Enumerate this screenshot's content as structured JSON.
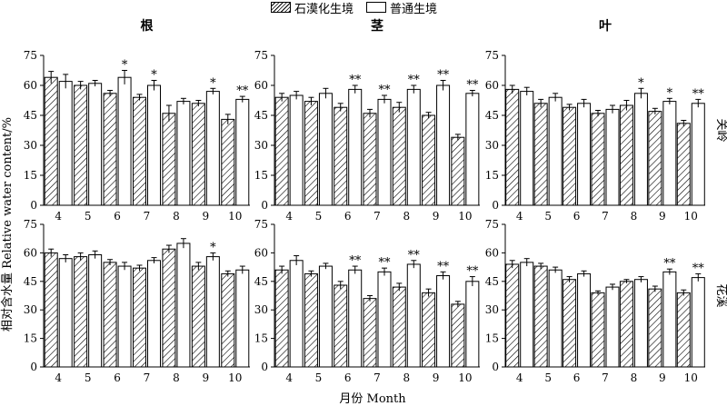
{
  "legend": {
    "series1": "石漠化生境",
    "series2": "普通生境"
  },
  "labels": {
    "ylabel": "相对含水量 Relative water content/%",
    "xlabel": "月份 Month"
  },
  "chart_data": [
    {
      "type": "bar",
      "row": "关岭",
      "organ": "根",
      "title": "根",
      "categories": [
        "4",
        "5",
        "6",
        "7",
        "8",
        "9",
        "10"
      ],
      "ylim": [
        0,
        75
      ],
      "yticks": [
        0,
        15,
        30,
        45,
        60,
        75
      ],
      "series": [
        {
          "name": "石漠化生境",
          "values": [
            64,
            60,
            56,
            54,
            46,
            51,
            43
          ],
          "errors": [
            3,
            2,
            1.5,
            1.5,
            4,
            1.5,
            2.5
          ]
        },
        {
          "name": "普通生境",
          "values": [
            62,
            61,
            64,
            60,
            52,
            57,
            53
          ],
          "errors": [
            3.5,
            1.5,
            3.5,
            2.5,
            1.5,
            1.5,
            1.5
          ]
        }
      ],
      "annotations": [
        "",
        "",
        "*",
        "*",
        "",
        "*",
        "**"
      ]
    },
    {
      "type": "bar",
      "row": "关岭",
      "organ": "茎",
      "title": "茎",
      "categories": [
        "4",
        "5",
        "6",
        "7",
        "8",
        "9",
        "10"
      ],
      "ylim": [
        0,
        75
      ],
      "yticks": [
        0,
        15,
        30,
        45,
        60,
        75
      ],
      "series": [
        {
          "name": "石漠化生境",
          "values": [
            54,
            52,
            49,
            46,
            49,
            45,
            34
          ],
          "errors": [
            2,
            2,
            2,
            2,
            2.5,
            1.5,
            1.5
          ]
        },
        {
          "name": "普通生境",
          "values": [
            55,
            56,
            58,
            53,
            58,
            60,
            56
          ],
          "errors": [
            2,
            2.5,
            2,
            2,
            2,
            2.5,
            1.5
          ]
        }
      ],
      "annotations": [
        "",
        "",
        "**",
        "**",
        "**",
        "**",
        "**"
      ]
    },
    {
      "type": "bar",
      "row": "关岭",
      "organ": "叶",
      "title": "叶",
      "categories": [
        "4",
        "5",
        "6",
        "7",
        "8",
        "9",
        "10"
      ],
      "ylim": [
        0,
        75
      ],
      "yticks": [
        0,
        15,
        30,
        45,
        60,
        75
      ],
      "series": [
        {
          "name": "石漠化生境",
          "values": [
            58,
            51,
            49,
            46,
            50,
            47,
            41
          ],
          "errors": [
            2,
            2,
            1.5,
            1.5,
            2.5,
            1.5,
            1.5
          ]
        },
        {
          "name": "普通生境",
          "values": [
            57,
            54,
            51,
            48,
            56,
            52,
            51
          ],
          "errors": [
            2,
            2,
            2,
            2,
            2.5,
            1.5,
            2
          ]
        }
      ],
      "annotations": [
        "",
        "",
        "",
        "",
        "*",
        "*",
        "**"
      ]
    },
    {
      "type": "bar",
      "row": "花溪",
      "organ": "根",
      "title": "",
      "categories": [
        "4",
        "5",
        "6",
        "7",
        "8",
        "9",
        "10"
      ],
      "ylim": [
        0,
        75
      ],
      "yticks": [
        0,
        15,
        30,
        45,
        60,
        75
      ],
      "series": [
        {
          "name": "石漠化生境",
          "values": [
            60,
            58,
            55,
            52,
            62,
            53,
            49
          ],
          "errors": [
            2,
            2,
            1.5,
            1.5,
            2,
            2,
            1.5
          ]
        },
        {
          "name": "普通生境",
          "values": [
            57,
            59,
            53,
            56,
            65,
            58,
            51
          ],
          "errors": [
            2,
            2,
            2,
            1.5,
            2.5,
            2,
            2
          ]
        }
      ],
      "annotations": [
        "",
        "",
        "",
        "",
        "",
        "*",
        ""
      ]
    },
    {
      "type": "bar",
      "row": "花溪",
      "organ": "茎",
      "title": "",
      "categories": [
        "4",
        "5",
        "6",
        "7",
        "8",
        "9",
        "10"
      ],
      "ylim": [
        0,
        75
      ],
      "yticks": [
        0,
        15,
        30,
        45,
        60,
        75
      ],
      "series": [
        {
          "name": "石漠化生境",
          "values": [
            51,
            49,
            43,
            36,
            42,
            39,
            33
          ],
          "errors": [
            2,
            1.5,
            2,
            1.5,
            2,
            2,
            1.5
          ]
        },
        {
          "name": "普通生境",
          "values": [
            56,
            53,
            51,
            50,
            54,
            48,
            45
          ],
          "errors": [
            2.5,
            1.5,
            2,
            2,
            2,
            2,
            2.5
          ]
        }
      ],
      "annotations": [
        "",
        "",
        "**",
        "**",
        "**",
        "**",
        "**"
      ]
    },
    {
      "type": "bar",
      "row": "花溪",
      "organ": "叶",
      "title": "",
      "categories": [
        "4",
        "5",
        "6",
        "7",
        "8",
        "9",
        "10"
      ],
      "ylim": [
        0,
        75
      ],
      "yticks": [
        0,
        15,
        30,
        45,
        60,
        75
      ],
      "series": [
        {
          "name": "石漠化生境",
          "values": [
            54,
            53,
            46,
            39,
            45,
            41,
            39
          ],
          "errors": [
            2,
            1.5,
            1.5,
            1,
            1,
            1.5,
            1.5
          ]
        },
        {
          "name": "普通生境",
          "values": [
            55,
            51,
            49,
            42,
            46,
            50,
            47
          ],
          "errors": [
            2,
            1.5,
            1.5,
            1.5,
            1.5,
            1.5,
            2
          ]
        }
      ],
      "annotations": [
        "",
        "",
        "",
        "",
        "",
        "**",
        "**"
      ]
    }
  ],
  "colors": {
    "series1_fill": "hatched",
    "series2_fill": "#ffffff",
    "stroke": "#000000"
  }
}
